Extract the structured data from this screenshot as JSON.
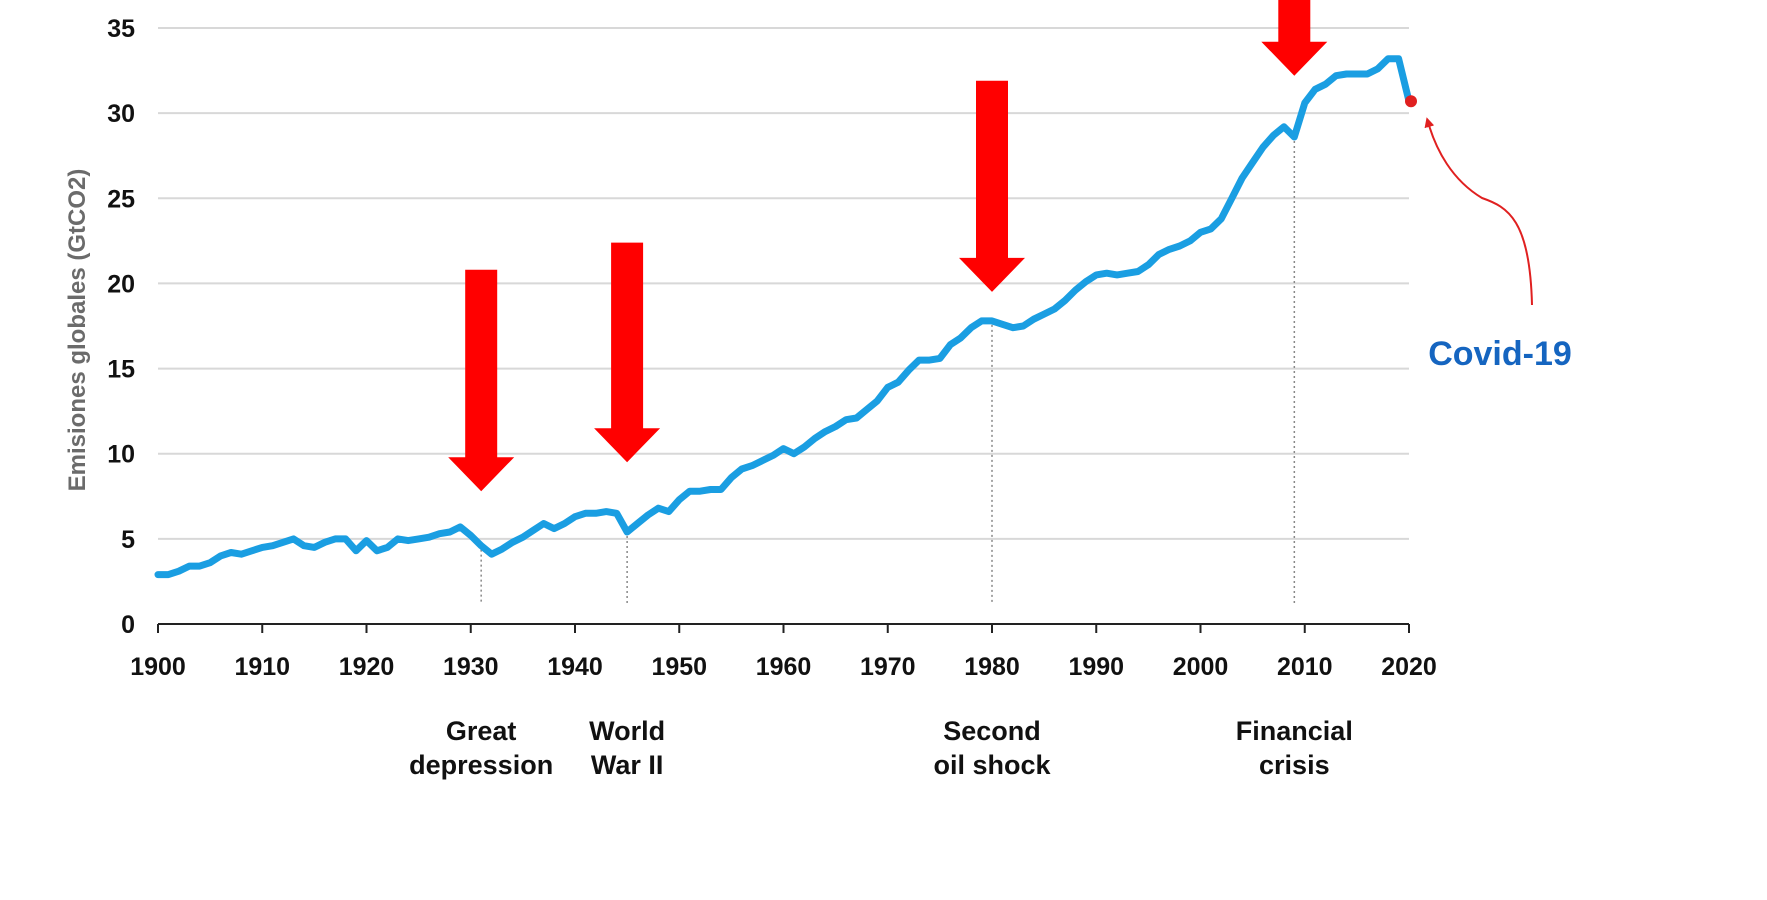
{
  "chart_data": {
    "type": "line",
    "title": "",
    "xlabel": "",
    "ylabel": "Emisiones globales (GtCO2)",
    "xlim": [
      1900,
      2020
    ],
    "ylim": [
      0,
      35
    ],
    "x_ticks": [
      1900,
      1910,
      1920,
      1930,
      1940,
      1950,
      1960,
      1970,
      1980,
      1990,
      2000,
      2010,
      2020
    ],
    "y_ticks": [
      0,
      5,
      10,
      15,
      20,
      25,
      30,
      35
    ],
    "grid": "horizontal",
    "line_color": "#1a9ee2",
    "arrow_color": "#ff0000",
    "covid_color": "#1565c0",
    "covid_point_color": "#e02020",
    "series": [
      {
        "x": [
          1900,
          1901,
          1902,
          1903,
          1904,
          1905,
          1906,
          1907,
          1908,
          1909,
          1910,
          1911,
          1912,
          1913,
          1914,
          1915,
          1916,
          1917,
          1918,
          1919,
          1920,
          1921,
          1922,
          1923,
          1924,
          1925,
          1926,
          1927,
          1928,
          1929,
          1930,
          1931,
          1932,
          1933,
          1934,
          1935,
          1936,
          1937,
          1938,
          1939,
          1940,
          1941,
          1942,
          1943,
          1944,
          1945,
          1946,
          1947,
          1948,
          1949,
          1950,
          1951,
          1952,
          1953,
          1954,
          1955,
          1956,
          1957,
          1958,
          1959,
          1960,
          1961,
          1962,
          1963,
          1964,
          1965,
          1966,
          1967,
          1968,
          1969,
          1970,
          1971,
          1972,
          1973,
          1974,
          1975,
          1976,
          1977,
          1978,
          1979,
          1980,
          1981,
          1982,
          1983,
          1984,
          1985,
          1986,
          1987,
          1988,
          1989,
          1990,
          1991,
          1992,
          1993,
          1994,
          1995,
          1996,
          1997,
          1998,
          1999,
          2000,
          2001,
          2002,
          2003,
          2004,
          2005,
          2006,
          2007,
          2008,
          2009,
          2010,
          2011,
          2012,
          2013,
          2014,
          2015,
          2016,
          2017,
          2018,
          2019,
          2020
        ],
        "values": [
          2.9,
          2.9,
          3.1,
          3.4,
          3.4,
          3.6,
          4.0,
          4.2,
          4.1,
          4.3,
          4.5,
          4.6,
          4.8,
          5.0,
          4.6,
          4.5,
          4.8,
          5.0,
          5.0,
          4.3,
          4.9,
          4.3,
          4.5,
          5.0,
          4.9,
          5.0,
          5.1,
          5.3,
          5.4,
          5.7,
          5.2,
          4.6,
          4.1,
          4.4,
          4.8,
          5.1,
          5.5,
          5.9,
          5.6,
          5.9,
          6.3,
          6.5,
          6.5,
          6.6,
          6.5,
          5.4,
          5.9,
          6.4,
          6.8,
          6.6,
          7.3,
          7.8,
          7.8,
          7.9,
          7.9,
          8.6,
          9.1,
          9.3,
          9.6,
          9.9,
          10.3,
          10.0,
          10.4,
          10.9,
          11.3,
          11.6,
          12.0,
          12.1,
          12.6,
          13.1,
          13.9,
          14.2,
          14.9,
          15.5,
          15.5,
          15.6,
          16.4,
          16.8,
          17.4,
          17.8,
          17.8,
          17.6,
          17.4,
          17.5,
          17.9,
          18.2,
          18.5,
          19.0,
          19.6,
          20.1,
          20.5,
          20.6,
          20.5,
          20.6,
          20.7,
          21.1,
          21.7,
          22.0,
          22.2,
          22.5,
          23.0,
          23.2,
          23.8,
          25.0,
          26.2,
          27.1,
          28.0,
          28.7,
          29.2,
          28.6,
          30.6,
          31.4,
          31.7,
          32.2,
          32.3,
          32.3,
          32.3,
          32.6,
          33.2,
          33.2,
          30.7
        ]
      }
    ],
    "events": [
      {
        "year": 1931,
        "label": [
          "Great",
          "depression"
        ],
        "arrow_top": 20.8,
        "arrow_tip": 7.8
      },
      {
        "year": 1945,
        "label": [
          "World",
          "War II"
        ],
        "arrow_top": 22.4,
        "arrow_tip": 9.5
      },
      {
        "year": 1980,
        "label": [
          "Second",
          "oil shock"
        ],
        "arrow_top": 31.9,
        "arrow_tip": 19.5
      },
      {
        "year": 2009,
        "label": [
          "Financial",
          "crisis"
        ],
        "arrow_top": 37,
        "arrow_tip": 32.2
      }
    ],
    "covid": {
      "year": 2020,
      "value": 30.7,
      "label": "Covid-19"
    }
  }
}
